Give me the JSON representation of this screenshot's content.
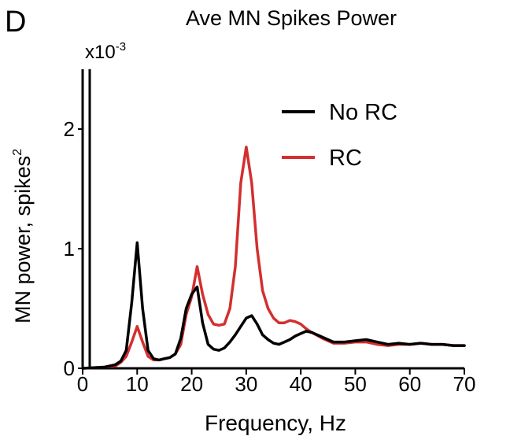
{
  "panel_label": "D",
  "chart_data": {
    "type": "line",
    "title": "Ave MN Spikes Power",
    "xlabel": "Frequency, Hz",
    "ylabel": "MN power, spikes",
    "ylabel_superscript": "2",
    "y_scale_label": "x10",
    "y_scale_exponent": "-3",
    "xlim": [
      0,
      70
    ],
    "ylim": [
      0,
      2.5
    ],
    "xticks": [
      0,
      10,
      20,
      30,
      40,
      50,
      60,
      70
    ],
    "xtick_labels": [
      "0",
      "10",
      "20",
      "30",
      "40",
      "50",
      "60",
      "70"
    ],
    "yticks": [
      0,
      1,
      2
    ],
    "ytick_labels": [
      "0",
      "1",
      "2"
    ],
    "grid": false,
    "legend_position": "top-right",
    "x": [
      0,
      2,
      4,
      6,
      7,
      8,
      9,
      10,
      11,
      12,
      13,
      14,
      15,
      16,
      17,
      18,
      19,
      20,
      21,
      22,
      23,
      24,
      25,
      26,
      27,
      28,
      29,
      30,
      31,
      32,
      33,
      34,
      35,
      36,
      37,
      38,
      39,
      40,
      41,
      42,
      44,
      46,
      48,
      50,
      52,
      54,
      56,
      58,
      60,
      62,
      64,
      66,
      68,
      70
    ],
    "series": [
      {
        "name": "No RC",
        "color": "#000000",
        "values": [
          0,
          0.005,
          0.01,
          0.03,
          0.06,
          0.15,
          0.55,
          1.05,
          0.5,
          0.15,
          0.08,
          0.07,
          0.08,
          0.09,
          0.12,
          0.25,
          0.5,
          0.62,
          0.68,
          0.38,
          0.2,
          0.16,
          0.15,
          0.17,
          0.22,
          0.28,
          0.35,
          0.42,
          0.44,
          0.37,
          0.28,
          0.24,
          0.21,
          0.2,
          0.22,
          0.24,
          0.27,
          0.29,
          0.31,
          0.3,
          0.26,
          0.22,
          0.22,
          0.23,
          0.24,
          0.22,
          0.2,
          0.21,
          0.2,
          0.21,
          0.2,
          0.2,
          0.19,
          0.19
        ]
      },
      {
        "name": "RC",
        "color": "#d32f2f",
        "values": [
          0,
          0.005,
          0.01,
          0.02,
          0.05,
          0.1,
          0.22,
          0.35,
          0.22,
          0.1,
          0.07,
          0.07,
          0.08,
          0.09,
          0.12,
          0.2,
          0.45,
          0.6,
          0.85,
          0.62,
          0.45,
          0.37,
          0.36,
          0.37,
          0.5,
          0.85,
          1.55,
          1.85,
          1.55,
          1.0,
          0.65,
          0.5,
          0.42,
          0.38,
          0.38,
          0.4,
          0.39,
          0.37,
          0.33,
          0.3,
          0.25,
          0.21,
          0.21,
          0.22,
          0.22,
          0.2,
          0.19,
          0.2,
          0.2,
          0.21,
          0.2,
          0.2,
          0.19,
          0.19
        ]
      }
    ]
  }
}
